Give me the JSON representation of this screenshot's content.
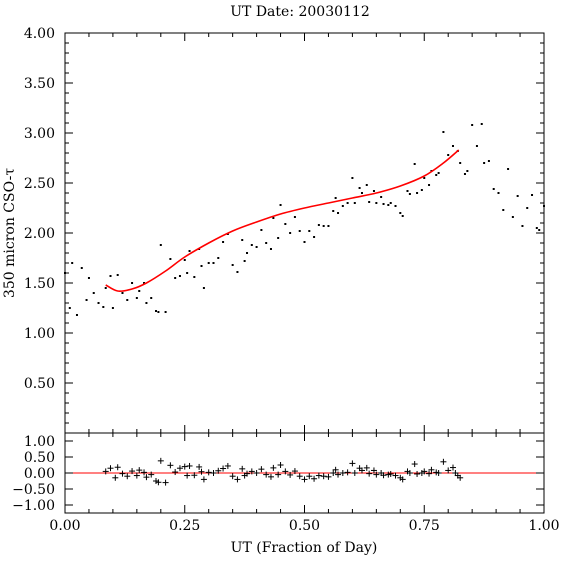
{
  "chart_data": [
    {
      "type": "scatter",
      "title": "UT Date: 20030112",
      "xlabel": "",
      "ylabel": "350 micron CSO-τ",
      "xlim": [
        0.0,
        1.0
      ],
      "ylim": [
        0.0,
        4.0
      ],
      "x_ticks": [
        "0.00",
        "0.25",
        "0.50",
        "0.75",
        "1.00"
      ],
      "y_ticks": [
        "0.50",
        "1.00",
        "1.50",
        "2.00",
        "2.50",
        "3.00",
        "3.50",
        "4.00"
      ],
      "grid": false,
      "point_color": "#000000",
      "fit_color": "#ff0000",
      "fit_range": [
        0.085,
        0.822
      ],
      "fit_points": [
        [
          0.085,
          1.48
        ],
        [
          0.11,
          1.42
        ],
        [
          0.14,
          1.44
        ],
        [
          0.17,
          1.5
        ],
        [
          0.21,
          1.62
        ],
        [
          0.25,
          1.76
        ],
        [
          0.3,
          1.9
        ],
        [
          0.35,
          2.02
        ],
        [
          0.4,
          2.11
        ],
        [
          0.45,
          2.19
        ],
        [
          0.5,
          2.25
        ],
        [
          0.55,
          2.3
        ],
        [
          0.6,
          2.35
        ],
        [
          0.65,
          2.4
        ],
        [
          0.7,
          2.47
        ],
        [
          0.75,
          2.57
        ],
        [
          0.79,
          2.7
        ],
        [
          0.822,
          2.83
        ]
      ],
      "points": [
        [
          0.0,
          1.6
        ],
        [
          0.01,
          1.25
        ],
        [
          0.015,
          1.7
        ],
        [
          0.025,
          1.18
        ],
        [
          0.035,
          1.65
        ],
        [
          0.045,
          1.33
        ],
        [
          0.05,
          1.55
        ],
        [
          0.06,
          1.4
        ],
        [
          0.07,
          1.3
        ],
        [
          0.08,
          1.26
        ],
        [
          0.085,
          1.45
        ],
        [
          0.095,
          1.57
        ],
        [
          0.1,
          1.25
        ],
        [
          0.11,
          1.58
        ],
        [
          0.12,
          1.4
        ],
        [
          0.13,
          1.33
        ],
        [
          0.14,
          1.5
        ],
        [
          0.15,
          1.35
        ],
        [
          0.155,
          1.42
        ],
        [
          0.165,
          1.5
        ],
        [
          0.17,
          1.3
        ],
        [
          0.18,
          1.35
        ],
        [
          0.19,
          1.22
        ],
        [
          0.195,
          1.21
        ],
        [
          0.2,
          1.88
        ],
        [
          0.21,
          1.21
        ],
        [
          0.22,
          1.74
        ],
        [
          0.23,
          1.55
        ],
        [
          0.24,
          1.57
        ],
        [
          0.25,
          1.73
        ],
        [
          0.255,
          1.6
        ],
        [
          0.26,
          1.82
        ],
        [
          0.27,
          1.56
        ],
        [
          0.28,
          1.84
        ],
        [
          0.285,
          1.67
        ],
        [
          0.29,
          1.45
        ],
        [
          0.3,
          1.7
        ],
        [
          0.31,
          1.7
        ],
        [
          0.32,
          1.75
        ],
        [
          0.33,
          1.91
        ],
        [
          0.34,
          1.99
        ],
        [
          0.35,
          1.68
        ],
        [
          0.36,
          1.61
        ],
        [
          0.37,
          1.93
        ],
        [
          0.375,
          1.72
        ],
        [
          0.38,
          1.8
        ],
        [
          0.39,
          1.88
        ],
        [
          0.4,
          1.86
        ],
        [
          0.41,
          2.03
        ],
        [
          0.42,
          1.9
        ],
        [
          0.43,
          1.84
        ],
        [
          0.435,
          2.15
        ],
        [
          0.445,
          1.95
        ],
        [
          0.45,
          2.28
        ],
        [
          0.46,
          2.09
        ],
        [
          0.47,
          2.0
        ],
        [
          0.48,
          2.16
        ],
        [
          0.49,
          2.02
        ],
        [
          0.5,
          1.91
        ],
        [
          0.51,
          2.02
        ],
        [
          0.52,
          1.96
        ],
        [
          0.53,
          2.08
        ],
        [
          0.54,
          2.07
        ],
        [
          0.55,
          2.07
        ],
        [
          0.56,
          2.22
        ],
        [
          0.565,
          2.35
        ],
        [
          0.57,
          2.2
        ],
        [
          0.58,
          2.27
        ],
        [
          0.59,
          2.3
        ],
        [
          0.6,
          2.55
        ],
        [
          0.605,
          2.3
        ],
        [
          0.615,
          2.45
        ],
        [
          0.62,
          2.4
        ],
        [
          0.63,
          2.48
        ],
        [
          0.635,
          2.31
        ],
        [
          0.645,
          2.42
        ],
        [
          0.65,
          2.3
        ],
        [
          0.66,
          2.36
        ],
        [
          0.665,
          2.29
        ],
        [
          0.675,
          2.28
        ],
        [
          0.68,
          2.3
        ],
        [
          0.69,
          2.27
        ],
        [
          0.7,
          2.2
        ],
        [
          0.705,
          2.17
        ],
        [
          0.715,
          2.42
        ],
        [
          0.72,
          2.39
        ],
        [
          0.73,
          2.69
        ],
        [
          0.735,
          2.4
        ],
        [
          0.745,
          2.43
        ],
        [
          0.75,
          2.55
        ],
        [
          0.76,
          2.48
        ],
        [
          0.765,
          2.62
        ],
        [
          0.775,
          2.58
        ],
        [
          0.78,
          2.6
        ],
        [
          0.79,
          3.01
        ],
        [
          0.8,
          2.78
        ],
        [
          0.81,
          2.87
        ],
        [
          0.82,
          2.82
        ],
        [
          0.825,
          2.7
        ],
        [
          0.835,
          2.59
        ],
        [
          0.84,
          2.62
        ],
        [
          0.85,
          3.08
        ],
        [
          0.86,
          2.87
        ],
        [
          0.87,
          3.09
        ],
        [
          0.875,
          2.7
        ],
        [
          0.885,
          2.72
        ],
        [
          0.895,
          2.44
        ],
        [
          0.905,
          2.4
        ],
        [
          0.915,
          2.23
        ],
        [
          0.925,
          2.64
        ],
        [
          0.935,
          2.16
        ],
        [
          0.945,
          2.37
        ],
        [
          0.955,
          2.07
        ],
        [
          0.965,
          2.25
        ],
        [
          0.975,
          2.38
        ],
        [
          0.985,
          2.05
        ],
        [
          0.99,
          2.03
        ],
        [
          1.0,
          2.27
        ]
      ]
    },
    {
      "type": "scatter",
      "xlabel": "UT (Fraction of Day)",
      "ylabel": "",
      "xlim": [
        0.0,
        1.0
      ],
      "ylim": [
        -1.25,
        1.25
      ],
      "x_ticks": [
        "0.00",
        "0.25",
        "0.50",
        "0.75",
        "1.00"
      ],
      "y_ticks": [
        "1.00",
        "0.50",
        "0.00",
        "−0.50",
        "−1.00"
      ],
      "y_tick_values": [
        1.0,
        0.5,
        0.0,
        -0.5,
        -1.0
      ],
      "grid": false,
      "zero_line_color": "#ff0000",
      "marker": "plus",
      "residuals": [
        [
          0.085,
          0.05
        ],
        [
          0.095,
          0.15
        ],
        [
          0.105,
          -0.15
        ],
        [
          0.11,
          0.18
        ],
        [
          0.12,
          -0.02
        ],
        [
          0.13,
          -0.1
        ],
        [
          0.14,
          0.06
        ],
        [
          0.15,
          -0.08
        ],
        [
          0.155,
          0.09
        ],
        [
          0.165,
          0.02
        ],
        [
          0.17,
          -0.13
        ],
        [
          0.18,
          -0.05
        ],
        [
          0.19,
          -0.25
        ],
        [
          0.195,
          -0.29
        ],
        [
          0.2,
          0.38
        ],
        [
          0.21,
          -0.3
        ],
        [
          0.22,
          0.24
        ],
        [
          0.23,
          0.03
        ],
        [
          0.24,
          0.15
        ],
        [
          0.25,
          0.2
        ],
        [
          0.255,
          -0.08
        ],
        [
          0.26,
          0.22
        ],
        [
          0.27,
          -0.07
        ],
        [
          0.28,
          0.19
        ],
        [
          0.285,
          0.04
        ],
        [
          0.29,
          -0.2
        ],
        [
          0.3,
          0.02
        ],
        [
          0.31,
          0.0
        ],
        [
          0.32,
          0.07
        ],
        [
          0.33,
          0.14
        ],
        [
          0.34,
          0.22
        ],
        [
          0.35,
          -0.1
        ],
        [
          0.36,
          -0.2
        ],
        [
          0.37,
          0.13
        ],
        [
          0.375,
          -0.08
        ],
        [
          0.38,
          -0.02
        ],
        [
          0.39,
          0.05
        ],
        [
          0.4,
          0.0
        ],
        [
          0.41,
          0.12
        ],
        [
          0.42,
          -0.05
        ],
        [
          0.43,
          -0.12
        ],
        [
          0.435,
          0.16
        ],
        [
          0.445,
          -0.05
        ],
        [
          0.45,
          0.25
        ],
        [
          0.46,
          0.05
        ],
        [
          0.47,
          -0.06
        ],
        [
          0.48,
          0.06
        ],
        [
          0.49,
          -0.1
        ],
        [
          0.5,
          -0.2
        ],
        [
          0.51,
          -0.1
        ],
        [
          0.52,
          -0.18
        ],
        [
          0.53,
          -0.08
        ],
        [
          0.54,
          -0.1
        ],
        [
          0.55,
          -0.12
        ],
        [
          0.56,
          0.0
        ],
        [
          0.565,
          0.1
        ],
        [
          0.57,
          -0.05
        ],
        [
          0.58,
          0.0
        ],
        [
          0.59,
          0.02
        ],
        [
          0.6,
          0.3
        ],
        [
          0.605,
          0.0
        ],
        [
          0.615,
          0.15
        ],
        [
          0.62,
          0.08
        ],
        [
          0.63,
          0.16
        ],
        [
          0.635,
          -0.02
        ],
        [
          0.645,
          0.08
        ],
        [
          0.65,
          -0.05
        ],
        [
          0.66,
          0.0
        ],
        [
          0.665,
          -0.07
        ],
        [
          0.675,
          -0.05
        ],
        [
          0.68,
          -0.03
        ],
        [
          0.69,
          -0.08
        ],
        [
          0.7,
          -0.15
        ],
        [
          0.705,
          -0.2
        ],
        [
          0.715,
          0.05
        ],
        [
          0.72,
          0.0
        ],
        [
          0.73,
          0.28
        ],
        [
          0.735,
          -0.03
        ],
        [
          0.745,
          0.0
        ],
        [
          0.75,
          0.05
        ],
        [
          0.76,
          -0.02
        ],
        [
          0.765,
          0.1
        ],
        [
          0.775,
          0.02
        ],
        [
          0.78,
          0.0
        ],
        [
          0.79,
          0.35
        ],
        [
          0.8,
          0.08
        ],
        [
          0.81,
          0.17
        ],
        [
          0.815,
          0.0
        ],
        [
          0.82,
          -0.08
        ],
        [
          0.825,
          -0.15
        ]
      ]
    }
  ]
}
